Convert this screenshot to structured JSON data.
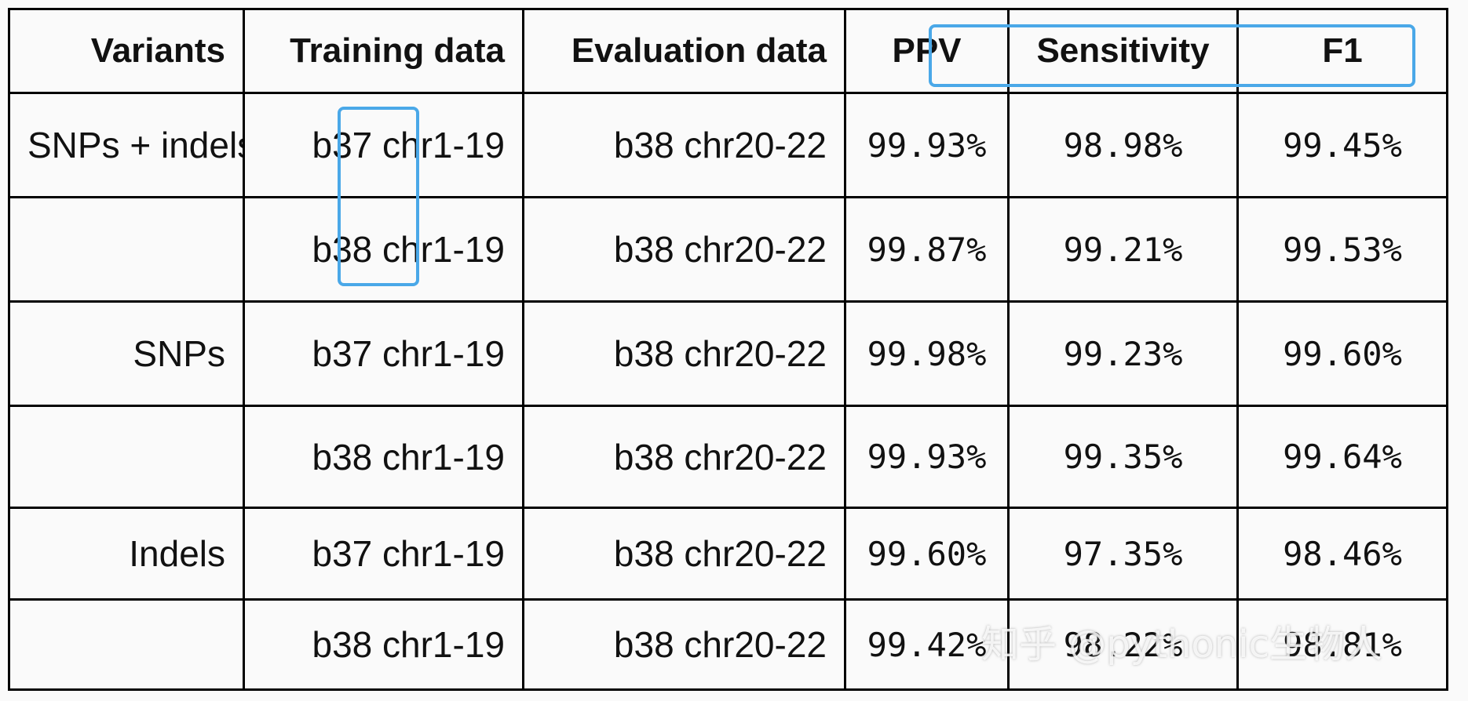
{
  "table": {
    "headers": [
      "Variants",
      "Training data",
      "Evaluation data",
      "PPV",
      "Sensitivity",
      "F1"
    ],
    "rows": [
      {
        "variants": "SNPs + indels",
        "training": "b37 chr1-19",
        "evaluation": "b38 chr20-22",
        "ppv": "99.93%",
        "sensitivity": "98.98%",
        "f1": "99.45%"
      },
      {
        "variants": "",
        "training": "b38 chr1-19",
        "evaluation": "b38 chr20-22",
        "ppv": "99.87%",
        "sensitivity": "99.21%",
        "f1": "99.53%"
      },
      {
        "variants": "SNPs",
        "training": "b37 chr1-19",
        "evaluation": "b38 chr20-22",
        "ppv": "99.98%",
        "sensitivity": "99.23%",
        "f1": "99.60%"
      },
      {
        "variants": "",
        "training": "b38 chr1-19",
        "evaluation": "b38 chr20-22",
        "ppv": "99.93%",
        "sensitivity": "99.35%",
        "f1": "99.64%"
      },
      {
        "variants": "Indels",
        "training": "b37 chr1-19",
        "evaluation": "b38 chr20-22",
        "ppv": "99.60%",
        "sensitivity": "97.35%",
        "f1": "98.46%"
      },
      {
        "variants": "",
        "training": "b38 chr1-19",
        "evaluation": "b38 chr20-22",
        "ppv": "99.42%",
        "sensitivity": "98.22%",
        "f1": "98.81%"
      }
    ]
  },
  "watermark": "知乎 @pythonic生物人",
  "colors": {
    "highlight": "#4aa8e8",
    "border": "#000000",
    "background": "#fafafa"
  }
}
